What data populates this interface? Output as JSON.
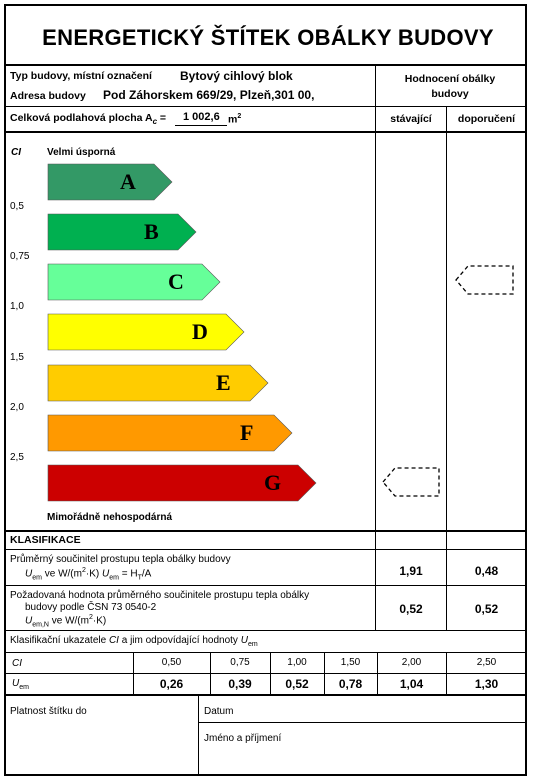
{
  "title": "ENERGETICKÝ ŠTÍTEK OBÁLKY BUDOVY",
  "building": {
    "type_label": "Typ budovy, místní označení",
    "type_value": "Bytový cihlový blok",
    "address_label": "Adresa budovy",
    "address_value": "Pod Záhorskem 669/29, Plzeň,301 00,",
    "area_label_pre": "Celková podlahová plocha A",
    "area_label_sub": "c",
    "area_label_eq": " = ",
    "area_value": "1 002,6",
    "area_unit": "m",
    "area_unit_sup": "2"
  },
  "rating_header": {
    "title": "Hodnocení obálky budovy",
    "col_current": "stávající",
    "col_recommended": "doporučení"
  },
  "scale": {
    "ci_label": "CI",
    "top_label": "Velmi úsporná",
    "bottom_label": "Mimořádně nehospodárná",
    "ticks": [
      "0,5",
      "0,75",
      "1,0",
      "1,5",
      "2,0",
      "2,5"
    ],
    "classes": [
      {
        "letter": "A",
        "color": "#339966"
      },
      {
        "letter": "B",
        "color": "#00B050"
      },
      {
        "letter": "C",
        "color": "#66FF99"
      },
      {
        "letter": "D",
        "color": "#FFFF00"
      },
      {
        "letter": "E",
        "color": "#FFCC00"
      },
      {
        "letter": "F",
        "color": "#FF9900"
      },
      {
        "letter": "G",
        "color": "#CC0000"
      }
    ],
    "current_class": "G",
    "recommended_class": "C"
  },
  "classification": {
    "heading": "KLASIFIKACE",
    "row1_line1": "Průměrný součinitel prostupu tepla obálky budovy",
    "row1_line2": "U",
    "row1_line2_sub": "em",
    "row1_line2_rest": " ve W/(m",
    "row1_line2_sup": "2",
    "row1_line2_rest2": "·K)  ",
    "row1_formula": "U",
    "row1_formula_sub": "em",
    "row1_formula_rest": " = H",
    "row1_formula_sub2": "T",
    "row1_formula_rest2": "/A",
    "row1_current": "1,91",
    "row1_recommended": "0,48",
    "row2_line1": "Požadovaná hodnota průměrného součinitele prostupu tepla obálky",
    "row2_line2": "budovy podle ČSN 73 0540-2",
    "row2_line3": "U",
    "row2_line3_sub": "em,N",
    "row2_line3_rest": " ve W/(m",
    "row2_line3_sup": "2",
    "row2_line3_rest2": "·K)",
    "row2_current": "0,52",
    "row2_recommended": "0,52"
  },
  "indicators": {
    "heading_pre": "Klasifikační ukazatele ",
    "heading_ci": "CI",
    "heading_mid": " a jim odpovídající hodnoty ",
    "heading_u": "U",
    "heading_u_sub": "em",
    "ci_label": "CI",
    "uem_label": "U",
    "uem_label_sub": "em",
    "ci_values": [
      "0,50",
      "0,75",
      "1,00",
      "1,50",
      "2,00",
      "2,50"
    ],
    "uem_values": [
      "0,26",
      "0,39",
      "0,52",
      "0,78",
      "1,04",
      "1,30"
    ]
  },
  "footer": {
    "validity_label": "Platnost štítku do",
    "date_label": "Datum",
    "name_label": "Jméno a příjmení"
  }
}
